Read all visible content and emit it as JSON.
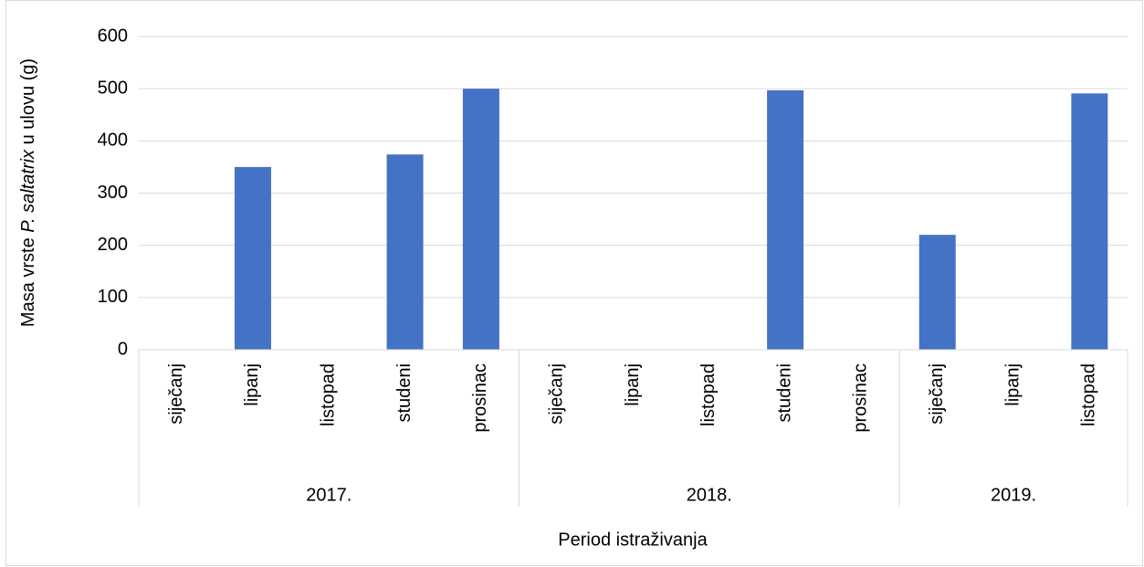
{
  "chart_data": {
    "type": "bar",
    "y_label_parts": [
      {
        "text": "Masa vrste "
      },
      {
        "text": "P. saltatrix",
        "italic": true
      },
      {
        "text": " u ulovu (g)"
      }
    ],
    "x_label": "Period istraživanja",
    "groups": [
      {
        "name": "2017.",
        "categories": [
          "siječanj",
          "lipanj",
          "listopad",
          "studeni",
          "prosinac"
        ],
        "values": [
          0,
          350,
          0,
          374,
          500
        ]
      },
      {
        "name": "2018.",
        "categories": [
          "siječanj",
          "lipanj",
          "listopad",
          "studeni",
          "prosinac"
        ],
        "values": [
          0,
          0,
          0,
          497,
          0
        ]
      },
      {
        "name": "2019.",
        "categories": [
          "siječanj",
          "lipanj",
          "listopad"
        ],
        "values": [
          220,
          0,
          491
        ]
      }
    ],
    "color": "#4472c4",
    "ylim": [
      0,
      600
    ],
    "yticks": [
      0,
      100,
      200,
      300,
      400,
      500,
      600
    ],
    "grid": true
  }
}
